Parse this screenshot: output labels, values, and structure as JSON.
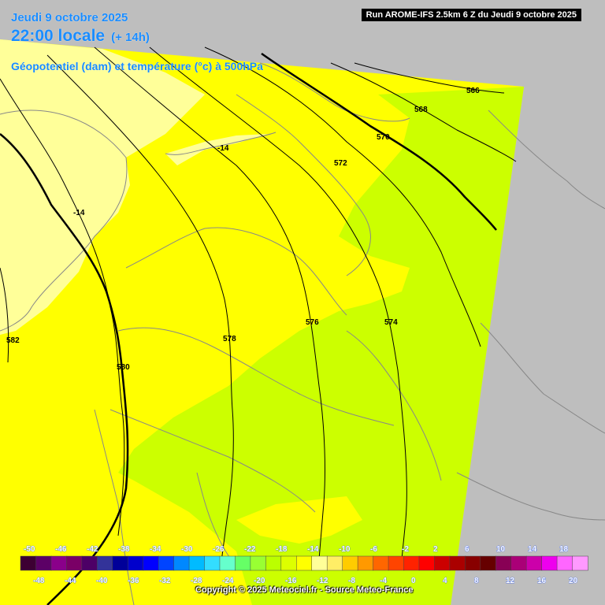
{
  "header": {
    "date": "Jeudi 9 octobre 2025",
    "time": "22:00 locale",
    "offset": "(+ 14h)",
    "parameter": "Géopotentiel (dam) et température (°c) à 500hPa",
    "run": "Run AROME-IFS 2.5km 6 Z du Jeudi 9 octobre 2025"
  },
  "isohypses": [
    {
      "label": "566"
    },
    {
      "label": "568"
    },
    {
      "label": "570"
    },
    {
      "label": "572"
    },
    {
      "label": "574"
    },
    {
      "label": "576"
    },
    {
      "label": "578"
    },
    {
      "label": "580"
    },
    {
      "label": "582"
    }
  ],
  "isotherms": [
    {
      "label": "-14"
    },
    {
      "label": "-14"
    }
  ],
  "legend": {
    "top_ticks": [
      "-50",
      "-46",
      "-42",
      "-38",
      "-34",
      "-30",
      "-26",
      "-22",
      "-18",
      "-14",
      "-10",
      "-6",
      "-2",
      "2",
      "6",
      "10",
      "14",
      "18"
    ],
    "bottom_ticks": [
      "-48",
      "-44",
      "-40",
      "-36",
      "-32",
      "-28",
      "-24",
      "-20",
      "-16",
      "-12",
      "-8",
      "-4",
      "0",
      "4",
      "8",
      "12",
      "16",
      "20"
    ],
    "colors": [
      "#3d0033",
      "#5c0066",
      "#8a008a",
      "#7a0066",
      "#4d0066",
      "#333399",
      "#000099",
      "#0000cc",
      "#0000ff",
      "#0044ff",
      "#0088ff",
      "#00bbff",
      "#33ddff",
      "#66ffcc",
      "#66ff66",
      "#99ff33",
      "#bbff00",
      "#ddff00",
      "#ffff00",
      "#ffff99",
      "#ffee66",
      "#ffcc00",
      "#ff9900",
      "#ff6600",
      "#ff4400",
      "#ff2200",
      "#ff0000",
      "#cc0000",
      "#aa0000",
      "#880000",
      "#660000",
      "#880055",
      "#aa0077",
      "#cc00aa",
      "#ee00ee",
      "#ff66ff",
      "#ff99ff"
    ]
  },
  "copyright": "Copyright © 2025 Meteociel.fr - Source Meteo-France"
}
